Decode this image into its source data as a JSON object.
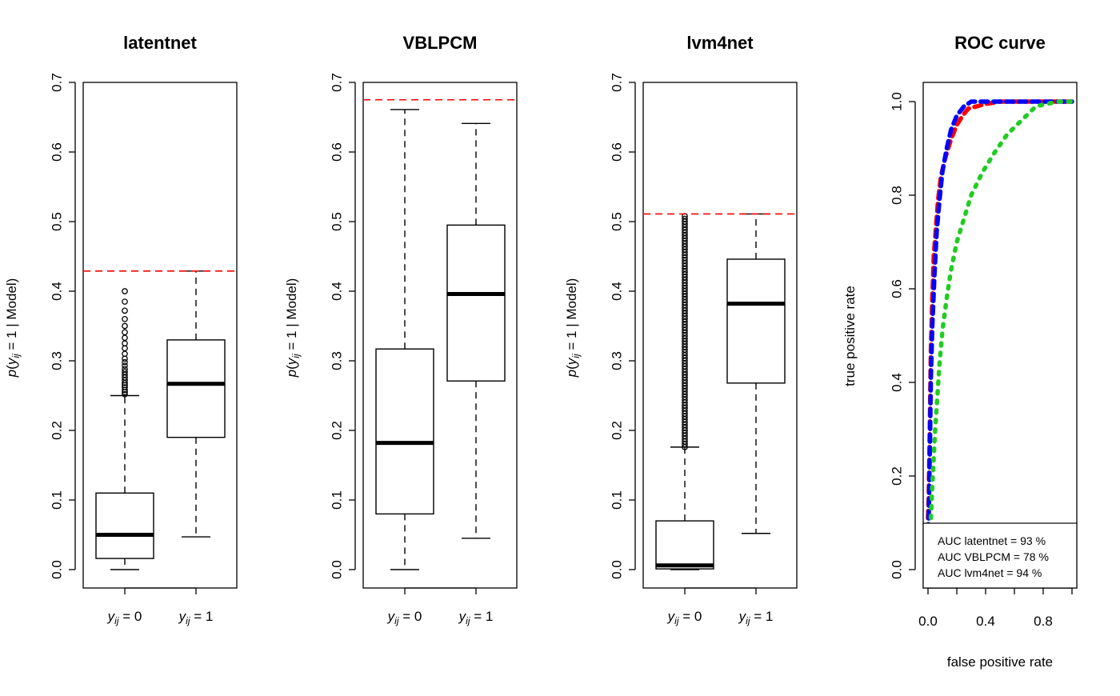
{
  "chart_data": [
    {
      "type": "box",
      "title": "latentnet",
      "ylabel": "p(y_ij = 1 | Model)",
      "ylim": [
        0,
        0.7
      ],
      "yticks": [
        "0.0",
        "0.1",
        "0.2",
        "0.3",
        "0.4",
        "0.5",
        "0.6",
        "0.7"
      ],
      "categories": [
        "y_ij = 0",
        "y_ij = 1"
      ],
      "threshold": 0.429,
      "threshold_color": "#ff0000",
      "boxes": [
        {
          "min": 0.0,
          "q1": 0.016,
          "median": 0.05,
          "q3": 0.11,
          "max": 0.25,
          "outliers": [
            0.252,
            0.255,
            0.258,
            0.262,
            0.265,
            0.268,
            0.272,
            0.276,
            0.28,
            0.284,
            0.288,
            0.293,
            0.298,
            0.303,
            0.31,
            0.318,
            0.325,
            0.333,
            0.341,
            0.35,
            0.36,
            0.372,
            0.385,
            0.4
          ]
        },
        {
          "min": 0.047,
          "q1": 0.19,
          "median": 0.267,
          "q3": 0.33,
          "max": 0.429,
          "outliers": []
        }
      ]
    },
    {
      "type": "box",
      "title": "VBLPCM",
      "ylabel": "p(y_ij = 1 | Model)",
      "ylim": [
        0,
        0.7
      ],
      "yticks": [
        "0.0",
        "0.1",
        "0.2",
        "0.3",
        "0.4",
        "0.5",
        "0.6",
        "0.7"
      ],
      "categories": [
        "y_ij = 0",
        "y_ij = 1"
      ],
      "threshold": 0.675,
      "threshold_color": "#ff0000",
      "boxes": [
        {
          "min": 0.0,
          "q1": 0.08,
          "median": 0.182,
          "q3": 0.317,
          "max": 0.661,
          "outliers": []
        },
        {
          "min": 0.045,
          "q1": 0.271,
          "median": 0.396,
          "q3": 0.495,
          "max": 0.641,
          "outliers": []
        }
      ]
    },
    {
      "type": "box",
      "title": "lvm4net",
      "ylabel": "p(y_ij = 1 | Model)",
      "ylim": [
        0,
        0.7
      ],
      "yticks": [
        "0.0",
        "0.1",
        "0.2",
        "0.3",
        "0.4",
        "0.5",
        "0.6",
        "0.7"
      ],
      "categories": [
        "y_ij = 0",
        "y_ij = 1"
      ],
      "threshold": 0.511,
      "threshold_color": "#ff0000",
      "boxes": [
        {
          "min": 0.0,
          "q1": 0.001,
          "median": 0.006,
          "q3": 0.07,
          "max": 0.176,
          "outlier_range": [
            0.176,
            0.511
          ],
          "outlier_step": 0.004
        },
        {
          "min": 0.052,
          "q1": 0.268,
          "median": 0.382,
          "q3": 0.446,
          "max": 0.511,
          "outliers": []
        }
      ]
    },
    {
      "type": "line",
      "title": "ROC curve",
      "xlabel": "false positive rate",
      "ylabel": "true positive rate",
      "xticks": [
        "0.0",
        "0.4",
        "0.8"
      ],
      "yticks": [
        "0.0",
        "0.2",
        "0.4",
        "0.6",
        "0.8",
        "1.0"
      ],
      "xlim": [
        0,
        1
      ],
      "ylim": [
        0,
        1
      ],
      "series": [
        {
          "color": "#ff0000",
          "style": "dashed",
          "x": [
            0.0,
            0.005,
            0.01,
            0.015,
            0.02,
            0.03,
            0.04,
            0.055,
            0.07,
            0.09,
            0.12,
            0.16,
            0.2,
            0.24,
            0.28,
            0.34,
            0.4,
            0.5,
            0.6,
            0.8,
            1.0
          ],
          "y": [
            0.11,
            0.15,
            0.25,
            0.36,
            0.47,
            0.58,
            0.67,
            0.73,
            0.79,
            0.84,
            0.88,
            0.92,
            0.95,
            0.97,
            0.985,
            0.99,
            0.995,
            1.0,
            1.0,
            1.0,
            1.0
          ]
        },
        {
          "color": "#0000ff",
          "style": "dashed",
          "x": [
            -0.02,
            0.005,
            0.01,
            0.015,
            0.02,
            0.03,
            0.045,
            0.06,
            0.08,
            0.1,
            0.13,
            0.16,
            0.2,
            0.25,
            0.3,
            0.4,
            0.5,
            0.7,
            1.0
          ],
          "y": [
            0.0,
            0.11,
            0.2,
            0.3,
            0.41,
            0.52,
            0.63,
            0.72,
            0.79,
            0.85,
            0.9,
            0.94,
            0.97,
            0.99,
            1.0,
            1.0,
            1.0,
            1.0,
            1.0
          ]
        },
        {
          "color": "#22cc22",
          "style": "dotted",
          "x": [
            0.02,
            0.03,
            0.04,
            0.05,
            0.065,
            0.08,
            0.1,
            0.13,
            0.16,
            0.2,
            0.25,
            0.3,
            0.38,
            0.46,
            0.55,
            0.65,
            0.75,
            0.9,
            1.0
          ],
          "y": [
            0.11,
            0.18,
            0.24,
            0.3,
            0.37,
            0.44,
            0.51,
            0.58,
            0.64,
            0.7,
            0.75,
            0.8,
            0.85,
            0.89,
            0.93,
            0.96,
            0.99,
            1.0,
            1.0
          ]
        }
      ],
      "legend": {
        "position": "bottom-right",
        "entries": [
          "AUC latentnet = 93 %",
          "AUC VBLPCM = 78 %",
          "AUC lvm4net = 94 %"
        ]
      }
    }
  ]
}
